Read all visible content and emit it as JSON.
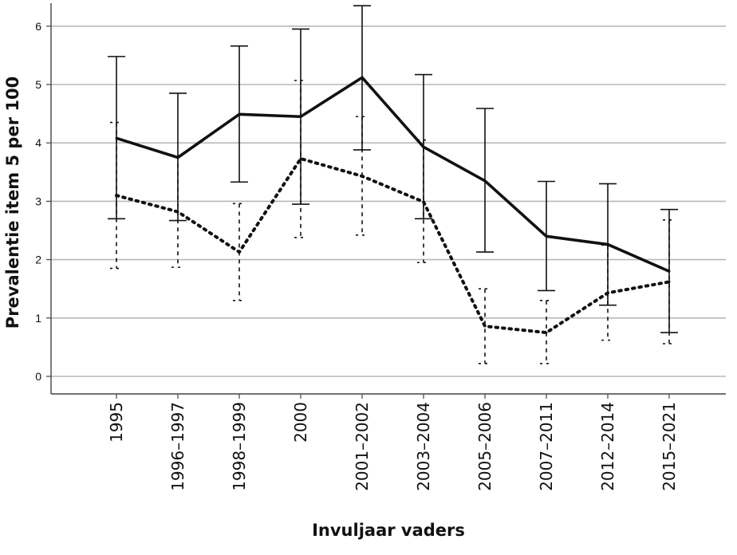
{
  "chart_data": {
    "type": "line",
    "title": "",
    "xlabel": "Invuljaar vaders",
    "ylabel": "Prevalentie item 5 per 100",
    "categories": [
      "1995",
      "1996–1997",
      "1998–1999",
      "2000",
      "2001–2002",
      "2003–2004",
      "2005–2006",
      "2007–2011",
      "2012–2014",
      "2015–2021"
    ],
    "ylim": [
      -0.3,
      6.35
    ],
    "yticks": [
      "0",
      "1",
      "2",
      "3",
      "4",
      "5",
      "6"
    ],
    "grid": true,
    "legend": "none",
    "series": [
      {
        "line_style": "solid",
        "values": [
          4.08,
          3.75,
          4.49,
          4.45,
          5.12,
          3.93,
          3.35,
          2.4,
          2.26,
          1.8
        ],
        "error_low": [
          2.7,
          2.67,
          3.33,
          2.95,
          3.88,
          2.7,
          2.13,
          1.47,
          1.22,
          0.75
        ],
        "error_high": [
          5.48,
          4.85,
          5.66,
          5.95,
          6.35,
          5.17,
          4.59,
          3.34,
          3.3,
          2.86
        ]
      },
      {
        "line_style": "dotted",
        "values": [
          3.1,
          2.82,
          2.13,
          3.73,
          3.43,
          2.99,
          0.86,
          0.75,
          1.43,
          1.62
        ],
        "error_low": [
          1.85,
          1.87,
          1.3,
          2.38,
          2.42,
          1.95,
          0.22,
          0.22,
          0.62,
          0.56
        ],
        "error_high": [
          4.35,
          3.78,
          2.96,
          5.07,
          4.45,
          4.05,
          1.5,
          1.3,
          2.25,
          2.68
        ]
      }
    ]
  }
}
